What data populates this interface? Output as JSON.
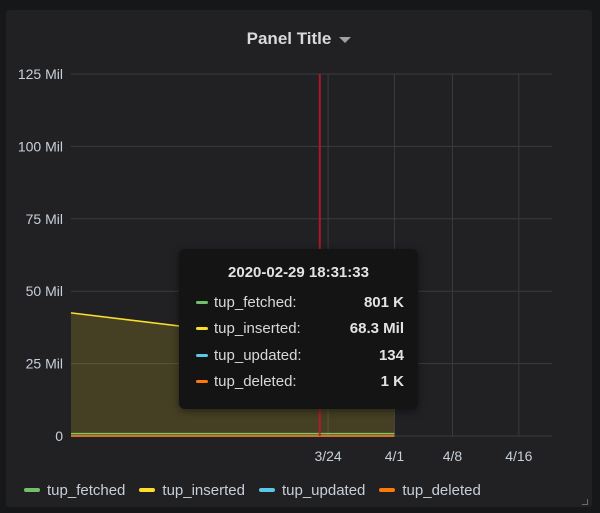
{
  "panel": {
    "title": "Panel Title"
  },
  "chart_data": {
    "type": "area",
    "ylim": [
      0,
      125
    ],
    "y_unit_suffix": " Mil",
    "y_ticks": [
      "0",
      "25 Mil",
      "50 Mil",
      "75 Mil",
      "100 Mil",
      "125 Mil"
    ],
    "y_tick_values": [
      0,
      25,
      50,
      75,
      100,
      125
    ],
    "x_range": [
      "2020-02-22",
      "2020-04-20"
    ],
    "x_ticks": [
      {
        "label": "3/24",
        "date": "2020-03-24"
      },
      {
        "label": "4/1",
        "date": "2020-04-01"
      },
      {
        "label": "4/8",
        "date": "2020-04-08"
      },
      {
        "label": "4/16",
        "date": "2020-04-16"
      }
    ],
    "grid": true,
    "legend_position": "bottom",
    "series": [
      {
        "name": "tup_fetched",
        "color": "#73bf69",
        "points": [
          [
            "2020-02-22",
            0.8
          ],
          [
            "2020-04-01",
            0.8
          ]
        ]
      },
      {
        "name": "tup_inserted",
        "color": "#fade2a",
        "points": [
          [
            "2020-02-22",
            42.5
          ],
          [
            "2020-04-01",
            29
          ]
        ],
        "fill": true
      },
      {
        "name": "tup_updated",
        "color": "#5794f2",
        "points": [
          [
            "2020-02-22",
            0
          ],
          [
            "2020-04-01",
            0
          ]
        ]
      },
      {
        "name": "tup_deleted",
        "color": "#ff780a",
        "points": [
          [
            "2020-02-22",
            0
          ],
          [
            "2020-04-01",
            0
          ]
        ]
      }
    ],
    "annotation": {
      "date": "2020-03-23",
      "color": "#c4162a"
    }
  },
  "tooltip": {
    "time": "2020-02-29 18:31:33",
    "rows": [
      {
        "name": "tup_fetched:",
        "value": "801 K",
        "color": "#73bf69"
      },
      {
        "name": "tup_inserted:",
        "value": "68.3 Mil",
        "color": "#fade2a"
      },
      {
        "name": "tup_updated:",
        "value": "134",
        "color": "#5ac8e6"
      },
      {
        "name": "tup_deleted:",
        "value": "1 K",
        "color": "#ff780a"
      }
    ]
  },
  "legend": [
    {
      "label": "tup_fetched",
      "color": "#73bf69"
    },
    {
      "label": "tup_inserted",
      "color": "#fade2a"
    },
    {
      "label": "tup_updated",
      "color": "#5ac8e6"
    },
    {
      "label": "tup_deleted",
      "color": "#ff780a"
    }
  ]
}
